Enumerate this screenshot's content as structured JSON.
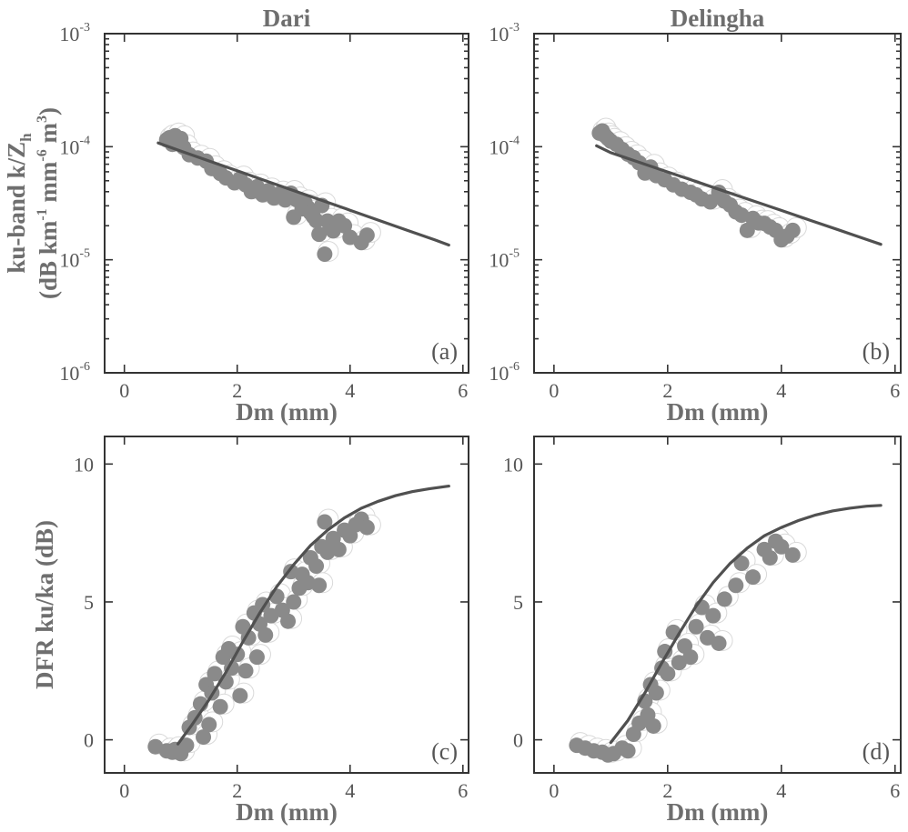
{
  "chart_data": [
    {
      "type": "scatter",
      "title": "Dari",
      "panel_label": "(a)",
      "xlabel": "Dm (mm)",
      "ylabel_line1": "ku-band k/Z",
      "ylabel_sub": "h",
      "ylabel_line2_parts": [
        "(dB km",
        "-1",
        " mm",
        "-6",
        " m",
        "3",
        ")"
      ],
      "xscale": "linear",
      "yscale": "log",
      "xlim": [
        -0.35,
        6.1
      ],
      "ylim": [
        1e-06,
        0.001
      ],
      "xticks": [
        0,
        2,
        4,
        6
      ],
      "xtick_labels": [
        "0",
        "2",
        "4",
        "6"
      ],
      "yticks": [
        1e-06,
        1e-05,
        0.0001,
        0.001
      ],
      "ytick_base": [
        "10",
        "10",
        "10",
        "10"
      ],
      "ytick_exp": [
        "-6",
        "-5",
        "-4",
        "-3"
      ],
      "grid": false,
      "line": {
        "x": [
          0.6,
          1.0,
          1.5,
          2.0,
          2.5,
          3.0,
          3.5,
          4.0,
          4.5,
          5.0,
          5.5,
          5.75
        ],
        "y": [
          0.000108,
          9.15e-05,
          7.48e-05,
          6.12e-05,
          5e-05,
          4.09e-05,
          3.35e-05,
          2.74e-05,
          2.24e-05,
          1.83e-05,
          1.5e-05,
          1.35e-05
        ]
      },
      "points": {
        "x": [
          0.75,
          0.8,
          0.85,
          0.9,
          0.95,
          1.0,
          1.05,
          1.15,
          1.3,
          1.45,
          1.55,
          1.7,
          1.8,
          1.95,
          2.05,
          2.15,
          2.25,
          2.35,
          2.45,
          2.55,
          2.65,
          2.75,
          2.85,
          2.95,
          3.0,
          3.05,
          3.15,
          3.2,
          3.25,
          3.3,
          3.35,
          3.4,
          3.45,
          3.5,
          3.55,
          3.6,
          3.65,
          3.7,
          3.8,
          3.9,
          4.0,
          4.2,
          4.3
        ],
        "y": [
          0.000115,
          0.00012,
          0.000105,
          0.000125,
          0.00011,
          0.000118,
          9.85e-05,
          8.5e-05,
          7.95e-05,
          7.45e-05,
          6.4e-05,
          5.8e-05,
          5.3e-05,
          4.8e-05,
          5.2e-05,
          4.6e-05,
          4e-05,
          4.42e-05,
          3.75e-05,
          4.08e-05,
          3.52e-05,
          3.83e-05,
          3.38e-05,
          3.88e-05,
          2.38e-05,
          3.4e-05,
          2.82e-05,
          3.2e-05,
          2.9e-05,
          2.6e-05,
          2.4e-05,
          2.22e-05,
          1.68e-05,
          3.02e-05,
          1.12e-05,
          2.2e-05,
          1.9e-05,
          1.8e-05,
          2.2e-05,
          2e-05,
          1.58e-05,
          1.42e-05,
          1.65e-05
        ]
      }
    },
    {
      "type": "scatter",
      "title": "Delingha",
      "panel_label": "(b)",
      "xlabel": "Dm (mm)",
      "xscale": "linear",
      "yscale": "log",
      "xlim": [
        -0.35,
        6.1
      ],
      "ylim": [
        1e-06,
        0.001
      ],
      "xticks": [
        0,
        2,
        4,
        6
      ],
      "xtick_labels": [
        "0",
        "2",
        "4",
        "6"
      ],
      "yticks": [
        1e-06,
        1e-05,
        0.0001,
        0.001
      ],
      "ytick_base": [
        "10",
        "10",
        "10",
        "10"
      ],
      "ytick_exp": [
        "-6",
        "-5",
        "-4",
        "-3"
      ],
      "grid": false,
      "line": {
        "x": [
          0.75,
          1.0,
          1.5,
          2.0,
          2.5,
          3.0,
          3.5,
          4.0,
          4.5,
          5.0,
          5.5,
          5.75
        ],
        "y": [
          0.000102,
          8.85e-05,
          7.27e-05,
          5.98e-05,
          4.91e-05,
          4.04e-05,
          3.32e-05,
          2.73e-05,
          2.24e-05,
          1.84e-05,
          1.51e-05,
          1.37e-05
        ]
      },
      "points": {
        "x": [
          0.8,
          0.85,
          0.9,
          0.95,
          1.0,
          1.1,
          1.2,
          1.3,
          1.4,
          1.5,
          1.6,
          1.7,
          1.8,
          1.95,
          2.1,
          2.25,
          2.4,
          2.5,
          2.6,
          2.75,
          2.9,
          3.0,
          3.1,
          3.2,
          3.3,
          3.4,
          3.5,
          3.6,
          3.7,
          3.8,
          3.9,
          4.0,
          4.1,
          4.2
        ],
        "y": [
          0.000132,
          0.000138,
          0.000125,
          0.000118,
          0.000112,
          0.000105,
          9.45e-05,
          8.6e-05,
          8e-05,
          7.2e-05,
          5.85e-05,
          6.6e-05,
          5.55e-05,
          5.1e-05,
          4.6e-05,
          4.2e-05,
          3.95e-05,
          3.75e-05,
          3.45e-05,
          3.25e-05,
          3.95e-05,
          3.3e-05,
          3.05e-05,
          2.65e-05,
          2.48e-05,
          1.82e-05,
          2.32e-05,
          2.12e-05,
          2.1e-05,
          1.95e-05,
          1.82e-05,
          1.5e-05,
          1.62e-05,
          1.82e-05
        ]
      }
    },
    {
      "type": "scatter",
      "panel_label": "(c)",
      "xlabel": "Dm (mm)",
      "ylabel": "DFR ku/ka (dB)",
      "xscale": "linear",
      "yscale": "linear",
      "xlim": [
        -0.35,
        6.1
      ],
      "ylim": [
        -1.2,
        11
      ],
      "xticks": [
        0,
        2,
        4,
        6
      ],
      "xtick_labels": [
        "0",
        "2",
        "4",
        "6"
      ],
      "yticks": [
        0,
        5,
        10
      ],
      "ytick_labels": [
        "0",
        "5",
        "10"
      ],
      "grid": false,
      "line": {
        "x": [
          0.95,
          1.2,
          1.5,
          1.8,
          2.1,
          2.4,
          2.7,
          3.0,
          3.3,
          3.6,
          3.9,
          4.2,
          4.5,
          4.8,
          5.1,
          5.4,
          5.75
        ],
        "y": [
          -0.15,
          0.55,
          1.45,
          2.45,
          3.55,
          4.6,
          5.55,
          6.35,
          7.05,
          7.6,
          8.05,
          8.4,
          8.65,
          8.85,
          9.0,
          9.1,
          9.2
        ]
      },
      "points": {
        "x": [
          0.55,
          0.75,
          0.85,
          0.9,
          1.0,
          1.1,
          1.15,
          1.25,
          1.35,
          1.4,
          1.45,
          1.5,
          1.55,
          1.6,
          1.7,
          1.75,
          1.8,
          1.85,
          1.9,
          2.0,
          2.05,
          2.1,
          2.15,
          2.2,
          2.3,
          2.35,
          2.4,
          2.45,
          2.5,
          2.6,
          2.7,
          2.8,
          2.9,
          2.95,
          3.0,
          3.1,
          3.15,
          3.25,
          3.3,
          3.4,
          3.45,
          3.5,
          3.55,
          3.6,
          3.7,
          3.8,
          3.9,
          4.0,
          4.1,
          4.2,
          4.3
        ],
        "y": [
          -0.25,
          -0.4,
          -0.45,
          -0.35,
          -0.5,
          -0.2,
          0.45,
          0.8,
          1.3,
          0.1,
          2.0,
          0.55,
          1.7,
          2.4,
          1.2,
          3.0,
          2.1,
          3.3,
          2.6,
          3.1,
          1.6,
          4.1,
          2.5,
          3.7,
          4.6,
          3.0,
          4.2,
          4.9,
          3.8,
          4.5,
          5.2,
          4.7,
          4.3,
          6.1,
          5.0,
          5.5,
          6.0,
          5.7,
          6.6,
          6.3,
          5.6,
          7.0,
          7.9,
          6.8,
          7.3,
          6.9,
          7.6,
          7.4,
          7.8,
          8.0,
          7.7
        ]
      }
    },
    {
      "type": "scatter",
      "panel_label": "(d)",
      "xlabel": "Dm (mm)",
      "xscale": "linear",
      "yscale": "linear",
      "xlim": [
        -0.35,
        6.1
      ],
      "ylim": [
        -1.2,
        11
      ],
      "xticks": [
        0,
        2,
        4,
        6
      ],
      "xtick_labels": [
        "0",
        "2",
        "4",
        "6"
      ],
      "yticks": [
        0,
        5,
        10
      ],
      "ytick_labels": [
        "0",
        "5",
        "10"
      ],
      "grid": false,
      "line": {
        "x": [
          1.0,
          1.3,
          1.6,
          1.9,
          2.2,
          2.5,
          2.8,
          3.1,
          3.4,
          3.7,
          4.0,
          4.3,
          4.6,
          4.9,
          5.2,
          5.5,
          5.75
        ],
        "y": [
          -0.1,
          0.7,
          1.7,
          2.8,
          3.85,
          4.85,
          5.7,
          6.4,
          6.95,
          7.4,
          7.7,
          7.95,
          8.15,
          8.3,
          8.4,
          8.47,
          8.5
        ]
      },
      "points": {
        "x": [
          0.4,
          0.55,
          0.7,
          0.85,
          0.95,
          1.05,
          1.2,
          1.3,
          1.4,
          1.5,
          1.6,
          1.65,
          1.7,
          1.75,
          1.8,
          1.9,
          1.95,
          2.0,
          2.1,
          2.2,
          2.3,
          2.4,
          2.5,
          2.6,
          2.7,
          2.8,
          2.9,
          3.0,
          3.2,
          3.3,
          3.5,
          3.7,
          3.8,
          3.9,
          4.0,
          4.2
        ],
        "y": [
          -0.2,
          -0.3,
          -0.4,
          -0.45,
          -0.55,
          -0.5,
          -0.3,
          -0.4,
          0.2,
          0.6,
          1.4,
          0.9,
          2.0,
          0.5,
          1.7,
          2.6,
          3.2,
          2.4,
          3.9,
          2.8,
          3.4,
          3.0,
          4.1,
          4.8,
          3.7,
          4.5,
          3.5,
          5.1,
          5.6,
          6.4,
          5.9,
          6.9,
          6.6,
          7.2,
          7.0,
          6.7
        ]
      }
    }
  ]
}
